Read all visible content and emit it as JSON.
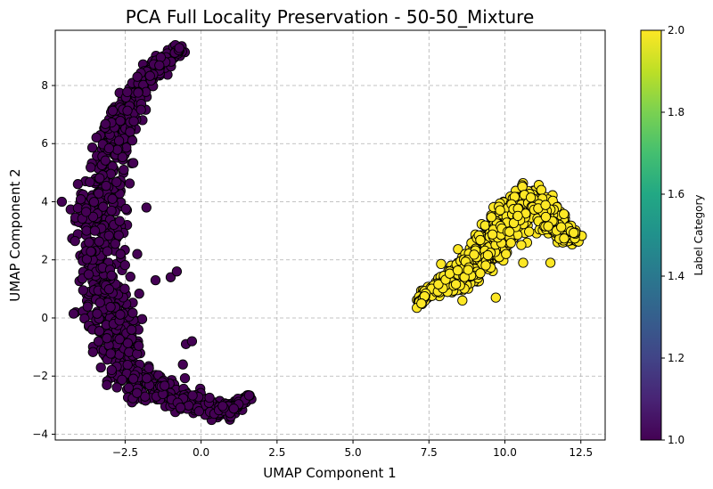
{
  "chart_data": {
    "type": "scatter",
    "title": "PCA Full Locality Preservation - 50-50_Mixture",
    "xlabel": "UMAP Component 1",
    "ylabel": "UMAP Component 2",
    "xlim": [
      -4.8,
      13.3
    ],
    "ylim": [
      -4.2,
      9.9
    ],
    "xticks": [
      -2.5,
      0.0,
      2.5,
      5.0,
      7.5,
      10.0,
      12.5
    ],
    "xtick_labels": [
      "−2.5",
      "0.0",
      "2.5",
      "5.0",
      "7.5",
      "10.0",
      "12.5"
    ],
    "yticks": [
      -4,
      -2,
      0,
      2,
      4,
      6,
      8
    ],
    "ytick_labels": [
      "−4",
      "−2",
      "0",
      "2",
      "4",
      "6",
      "8"
    ],
    "grid": true,
    "colorbar": {
      "label": "Label Category",
      "range": [
        1.0,
        2.0
      ],
      "ticks": [
        1.0,
        1.2,
        1.4,
        1.6,
        1.8,
        2.0
      ],
      "tick_labels": [
        "1.0",
        "1.2",
        "1.4",
        "1.6",
        "1.8",
        "2.0"
      ],
      "colormap": "viridis"
    },
    "series": [
      {
        "label_value": 1.0,
        "color": "#440154",
        "centerline": [
          [
            -0.7,
            9.25
          ],
          [
            -1.5,
            8.6
          ],
          [
            -2.3,
            7.6
          ],
          [
            -2.8,
            6.2
          ],
          [
            -3.3,
            4.2
          ],
          [
            -3.4,
            2.5
          ],
          [
            -3.1,
            0.8
          ],
          [
            -2.8,
            -0.8
          ],
          [
            -2.4,
            -2.0
          ],
          [
            -1.6,
            -2.4
          ],
          [
            -0.6,
            -2.8
          ],
          [
            0.3,
            -3.2
          ],
          [
            1.0,
            -3.1
          ],
          [
            1.6,
            -2.7
          ]
        ],
        "spread": [
          0.18,
          0.3,
          0.4,
          0.55,
          0.7,
          0.75,
          0.75,
          0.7,
          0.55,
          0.45,
          0.35,
          0.28,
          0.2,
          0.1
        ],
        "extra_points": [
          [
            -2.1,
            2.2
          ],
          [
            -1.0,
            1.4
          ],
          [
            -0.8,
            1.6
          ],
          [
            -1.5,
            1.3
          ],
          [
            -0.5,
            -0.9
          ],
          [
            -0.3,
            -0.8
          ],
          [
            -2.7,
            6.1
          ],
          [
            -3.7,
            1.5
          ],
          [
            -0.6,
            -1.6
          ],
          [
            -1.8,
            3.8
          ]
        ],
        "count": 1100
      },
      {
        "label_value": 2.0,
        "color": "#fde725",
        "centerline": [
          [
            7.2,
            0.5
          ],
          [
            7.5,
            0.95
          ],
          [
            8.2,
            1.2
          ],
          [
            8.9,
            1.7
          ],
          [
            9.5,
            2.4
          ],
          [
            9.9,
            3.0
          ],
          [
            10.4,
            3.6
          ],
          [
            10.8,
            4.1
          ],
          [
            11.4,
            3.5
          ],
          [
            11.8,
            3.0
          ],
          [
            12.3,
            2.8
          ]
        ],
        "spread": [
          0.08,
          0.15,
          0.3,
          0.4,
          0.5,
          0.55,
          0.55,
          0.5,
          0.45,
          0.35,
          0.2
        ],
        "extra_points": [
          [
            7.1,
            0.35
          ],
          [
            7.25,
            0.5
          ],
          [
            9.7,
            0.7
          ],
          [
            8.6,
            0.6
          ],
          [
            11.5,
            1.9
          ],
          [
            10.6,
            1.9
          ]
        ],
        "count": 1100
      }
    ]
  }
}
